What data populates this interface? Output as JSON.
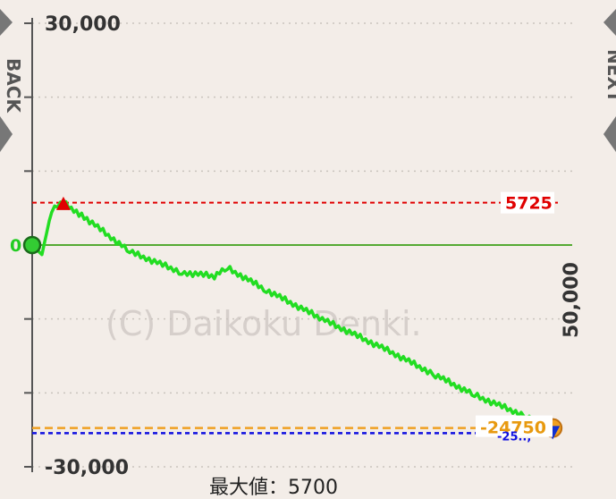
{
  "nav": {
    "back_label": "BACK",
    "next_label": "NEXT"
  },
  "watermark": "(C) Daikoku Denki.",
  "footer": {
    "max_text": "最大値：5700"
  },
  "chart_data": {
    "type": "line",
    "title": "",
    "xlabel": "",
    "ylabel": "",
    "xlim": [
      0,
      8300
    ],
    "ylim": [
      -30000,
      30000
    ],
    "y_ticks": [
      30000,
      20000,
      10000,
      0,
      -10000,
      -20000,
      -30000
    ],
    "y_tick_labels": [
      "30,000",
      "",
      "",
      "",
      "",
      "",
      "-30,000"
    ],
    "x_axis_label": "50,000",
    "grid": true,
    "series": [
      {
        "color": "#22dd22",
        "x": [
          0,
          150,
          300,
          480,
          800,
          1500,
          2300,
          2800,
          3000,
          3600,
          4500,
          5500,
          6200,
          6800,
          7600,
          8000
        ],
        "y": [
          0,
          -1300,
          4800,
          5700,
          3800,
          -900,
          -3700,
          -4200,
          -3100,
          -6100,
          -10200,
          -14400,
          -17600,
          -20300,
          -23200,
          -24700
        ]
      }
    ],
    "reference_lines": [
      {
        "name": "max",
        "value": 5725,
        "label": "5725",
        "color": "#e00000"
      },
      {
        "name": "zero",
        "value": 0,
        "label": "0",
        "color": "#55aa33"
      },
      {
        "name": "current",
        "value": -24750,
        "label": "-24750",
        "color": "#f0a020"
      },
      {
        "name": "min",
        "value": -25450,
        "label": "-25.., ",
        "color": "#1010e0"
      }
    ],
    "markers": [
      {
        "name": "start",
        "x": 0,
        "y": 0,
        "color": "#33cc33"
      },
      {
        "name": "peak",
        "x": 480,
        "y": 5700,
        "color": "#e00000"
      },
      {
        "name": "end",
        "x": 8000,
        "y": -24750,
        "color": "#f0a020"
      },
      {
        "name": "trough",
        "x": 8000,
        "y": -25450,
        "color": "#1030d0"
      }
    ]
  }
}
